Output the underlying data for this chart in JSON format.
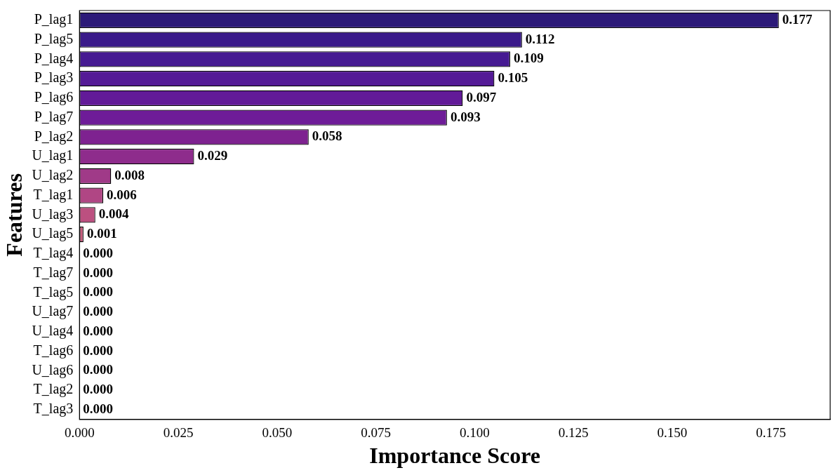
{
  "chart_data": {
    "type": "bar",
    "orientation": "horizontal",
    "xlabel": "Importance Score",
    "ylabel": "Features",
    "categories": [
      "P_lag1",
      "P_lag5",
      "P_lag4",
      "P_lag3",
      "P_lag6",
      "P_lag7",
      "P_lag2",
      "U_lag1",
      "U_lag2",
      "T_lag1",
      "U_lag3",
      "U_lag5",
      "T_lag4",
      "T_lag7",
      "T_lag5",
      "U_lag7",
      "U_lag4",
      "T_lag6",
      "U_lag6",
      "T_lag2",
      "T_lag3"
    ],
    "values": [
      0.177,
      0.112,
      0.109,
      0.105,
      0.097,
      0.093,
      0.058,
      0.029,
      0.008,
      0.006,
      0.004,
      0.001,
      0,
      0,
      0,
      0,
      0,
      0,
      0,
      0,
      0
    ],
    "value_labels": [
      "0.177",
      "0.112",
      "0.109",
      "0.105",
      "0.097",
      "0.093",
      "0.058",
      "0.029",
      "0.008",
      "0.006",
      "0.004",
      "0.001",
      "0.000",
      "0.000",
      "0.000",
      "0.000",
      "0.000",
      "0.000",
      "0.000",
      "0.000",
      "0.000"
    ],
    "colors": [
      "#2c1a78",
      "#3a1a8a",
      "#461a92",
      "#541a96",
      "#621a98",
      "#6e1c98",
      "#7e2290",
      "#8e2c8c",
      "#a03a88",
      "#b04684",
      "#bc5080",
      "#c65a7c",
      "#d0667a",
      "#d87276",
      "#e07e72",
      "#e68a6e",
      "#ec986c",
      "#f0a66c",
      "#f4b46e",
      "#f6c272",
      "#f8d078"
    ],
    "xlim": [
      0,
      0.19
    ],
    "xticks": [
      {
        "value": 0,
        "label": "0.000"
      },
      {
        "value": 0.025,
        "label": "0.025"
      },
      {
        "value": 0.05,
        "label": "0.050"
      },
      {
        "value": 0.075,
        "label": "0.075"
      },
      {
        "value": 0.1,
        "label": "0.100"
      },
      {
        "value": 0.125,
        "label": "0.125"
      },
      {
        "value": 0.15,
        "label": "0.150"
      },
      {
        "value": 0.175,
        "label": "0.175"
      }
    ],
    "grid": false,
    "legend": false
  }
}
